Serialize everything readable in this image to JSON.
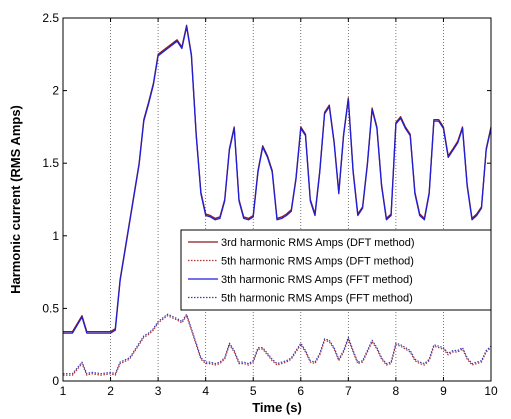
{
  "chart_data": {
    "type": "line",
    "title": "",
    "xlabel": "Time (s)",
    "ylabel": "Harmonic current (RMS Amps)",
    "xlim": [
      1,
      10
    ],
    "ylim": [
      0,
      2.5
    ],
    "x_ticks": [
      "1",
      "2",
      "3",
      "4",
      "5",
      "6",
      "7",
      "8",
      "9",
      "10"
    ],
    "y_ticks": [
      "0",
      "0.5",
      "1",
      "1.5",
      "2",
      "2.5"
    ],
    "grid": "vertical dotted lines at integer seconds",
    "legend_position": "lower-right",
    "x": [
      1.0,
      1.2,
      1.4,
      1.5,
      1.6,
      1.8,
      2.0,
      2.1,
      2.2,
      2.4,
      2.6,
      2.7,
      2.8,
      2.9,
      3.0,
      3.2,
      3.4,
      3.5,
      3.6,
      3.7,
      3.8,
      3.9,
      4.0,
      4.1,
      4.2,
      4.3,
      4.4,
      4.5,
      4.6,
      4.7,
      4.8,
      4.9,
      5.0,
      5.1,
      5.2,
      5.3,
      5.4,
      5.5,
      5.6,
      5.7,
      5.8,
      5.9,
      6.0,
      6.1,
      6.2,
      6.3,
      6.4,
      6.5,
      6.6,
      6.7,
      6.8,
      6.9,
      7.0,
      7.1,
      7.2,
      7.3,
      7.4,
      7.5,
      7.6,
      7.7,
      7.8,
      7.9,
      8.0,
      8.1,
      8.2,
      8.3,
      8.4,
      8.5,
      8.6,
      8.7,
      8.8,
      8.9,
      9.0,
      9.1,
      9.2,
      9.3,
      9.4,
      9.5,
      9.6,
      9.7,
      9.8,
      9.9,
      10.0
    ],
    "series": [
      {
        "name": "3rd harmonic RMS Amps (DFT method)",
        "color": "#8b1a1a",
        "style": "solid",
        "values": [
          0.34,
          0.34,
          0.45,
          0.34,
          0.34,
          0.34,
          0.34,
          0.36,
          0.7,
          1.1,
          1.5,
          1.8,
          1.92,
          2.05,
          2.25,
          2.3,
          2.35,
          2.3,
          2.45,
          2.25,
          1.7,
          1.3,
          1.15,
          1.14,
          1.12,
          1.13,
          1.25,
          1.6,
          1.75,
          1.25,
          1.13,
          1.12,
          1.14,
          1.45,
          1.62,
          1.55,
          1.45,
          1.12,
          1.13,
          1.15,
          1.18,
          1.4,
          1.75,
          1.7,
          1.25,
          1.15,
          1.45,
          1.85,
          1.9,
          1.65,
          1.3,
          1.7,
          1.95,
          1.45,
          1.15,
          1.2,
          1.5,
          1.88,
          1.75,
          1.35,
          1.12,
          1.15,
          1.78,
          1.82,
          1.75,
          1.7,
          1.3,
          1.15,
          1.12,
          1.3,
          1.8,
          1.8,
          1.75,
          1.55,
          1.6,
          1.65,
          1.75,
          1.35,
          1.12,
          1.15,
          1.2,
          1.6,
          1.75
        ]
      },
      {
        "name": "5th harmonic RMS Amps (DFT method)",
        "color": "#b03030",
        "style": "dotted",
        "values": [
          0.04,
          0.04,
          0.12,
          0.04,
          0.05,
          0.04,
          0.05,
          0.04,
          0.12,
          0.15,
          0.25,
          0.3,
          0.32,
          0.35,
          0.4,
          0.45,
          0.42,
          0.4,
          0.45,
          0.35,
          0.25,
          0.15,
          0.12,
          0.12,
          0.11,
          0.12,
          0.15,
          0.25,
          0.2,
          0.12,
          0.12,
          0.11,
          0.13,
          0.22,
          0.22,
          0.18,
          0.14,
          0.11,
          0.12,
          0.13,
          0.15,
          0.2,
          0.25,
          0.2,
          0.13,
          0.12,
          0.18,
          0.28,
          0.27,
          0.22,
          0.14,
          0.2,
          0.29,
          0.2,
          0.12,
          0.13,
          0.2,
          0.27,
          0.22,
          0.15,
          0.11,
          0.12,
          0.25,
          0.24,
          0.22,
          0.2,
          0.14,
          0.12,
          0.11,
          0.14,
          0.24,
          0.23,
          0.22,
          0.18,
          0.2,
          0.2,
          0.22,
          0.15,
          0.11,
          0.12,
          0.13,
          0.2,
          0.23
        ]
      },
      {
        "name": "3th harmonic RMS Amps (FFT method)",
        "color": "#1f1fd6",
        "style": "solid",
        "values": [
          0.33,
          0.33,
          0.44,
          0.33,
          0.33,
          0.33,
          0.33,
          0.35,
          0.69,
          1.09,
          1.49,
          1.79,
          1.91,
          2.04,
          2.24,
          2.29,
          2.34,
          2.29,
          2.44,
          2.24,
          1.69,
          1.29,
          1.14,
          1.13,
          1.11,
          1.12,
          1.24,
          1.59,
          1.74,
          1.24,
          1.12,
          1.11,
          1.13,
          1.44,
          1.61,
          1.54,
          1.44,
          1.11,
          1.12,
          1.14,
          1.17,
          1.39,
          1.74,
          1.69,
          1.24,
          1.14,
          1.44,
          1.84,
          1.89,
          1.64,
          1.29,
          1.69,
          1.94,
          1.44,
          1.14,
          1.19,
          1.49,
          1.87,
          1.74,
          1.34,
          1.11,
          1.14,
          1.77,
          1.81,
          1.74,
          1.69,
          1.29,
          1.14,
          1.11,
          1.29,
          1.79,
          1.79,
          1.74,
          1.54,
          1.59,
          1.64,
          1.74,
          1.34,
          1.11,
          1.14,
          1.19,
          1.59,
          1.74
        ]
      },
      {
        "name": "5th harmonic RMS Amps (FFT method)",
        "color": "#3a3ab0",
        "style": "dotted",
        "values": [
          0.05,
          0.05,
          0.13,
          0.05,
          0.06,
          0.05,
          0.06,
          0.05,
          0.13,
          0.16,
          0.26,
          0.31,
          0.33,
          0.36,
          0.41,
          0.46,
          0.43,
          0.41,
          0.46,
          0.36,
          0.26,
          0.16,
          0.13,
          0.13,
          0.12,
          0.13,
          0.16,
          0.26,
          0.21,
          0.13,
          0.13,
          0.12,
          0.14,
          0.23,
          0.23,
          0.19,
          0.15,
          0.12,
          0.13,
          0.14,
          0.16,
          0.21,
          0.26,
          0.21,
          0.14,
          0.13,
          0.19,
          0.29,
          0.28,
          0.23,
          0.15,
          0.21,
          0.3,
          0.21,
          0.13,
          0.14,
          0.21,
          0.28,
          0.23,
          0.16,
          0.12,
          0.13,
          0.26,
          0.25,
          0.23,
          0.21,
          0.15,
          0.13,
          0.12,
          0.15,
          0.25,
          0.24,
          0.23,
          0.19,
          0.21,
          0.21,
          0.23,
          0.16,
          0.12,
          0.13,
          0.14,
          0.21,
          0.24
        ]
      }
    ]
  }
}
